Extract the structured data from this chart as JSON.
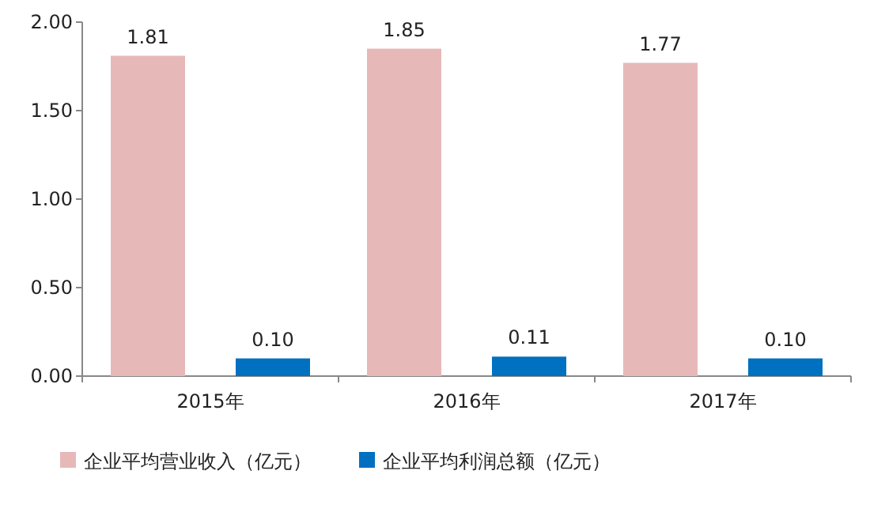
{
  "chart_data": {
    "type": "bar",
    "categories": [
      "2015年",
      "2016年",
      "2017年"
    ],
    "series": [
      {
        "name": "企业平均营业收入（亿元）",
        "color": "#e6b9b8",
        "values": [
          1.81,
          1.85,
          1.77
        ],
        "value_labels": [
          "1.81",
          "1.85",
          "1.77"
        ]
      },
      {
        "name": "企业平均利润总额（亿元）",
        "color": "#0070c0",
        "values": [
          0.1,
          0.11,
          0.1
        ],
        "value_labels": [
          "0.10",
          "0.11",
          "0.10"
        ]
      }
    ],
    "ylim": [
      0,
      2
    ],
    "yticks": [
      {
        "value": 0,
        "label": "0.00"
      },
      {
        "value": 0.5,
        "label": "0.50"
      },
      {
        "value": 1,
        "label": "1.00"
      },
      {
        "value": 1.5,
        "label": "1.50"
      },
      {
        "value": 2,
        "label": "2.00"
      }
    ],
    "grid": false,
    "legend": "bottom"
  }
}
